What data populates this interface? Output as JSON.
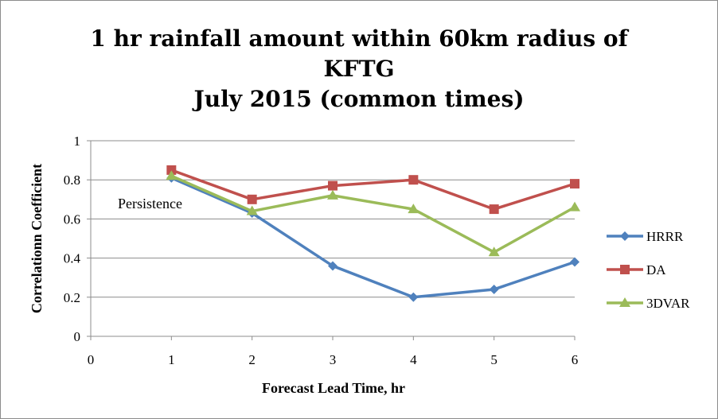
{
  "chart_data": {
    "type": "line",
    "title_lines": [
      "1 hr rainfall amount within 60km radius of",
      "KFTG",
      "July 2015 (common times)"
    ],
    "xlabel": "Forecast Lead Time, hr",
    "ylabel": "Correlationn Coefficient",
    "xlim": [
      0,
      6
    ],
    "ylim": [
      0,
      1
    ],
    "x_ticks": [
      "0",
      "1",
      "2",
      "3",
      "4",
      "5",
      "6"
    ],
    "y_ticks": [
      "0",
      "0.2",
      "0.4",
      "0.6",
      "0.8",
      "1"
    ],
    "x": [
      1,
      2,
      3,
      4,
      5,
      6
    ],
    "grid": "horizontal",
    "legend_position": "right",
    "annotation": "Persistence",
    "series": [
      {
        "name": "HRRR",
        "color": "#4f81bd",
        "marker": "diamond",
        "values": [
          0.81,
          0.63,
          0.36,
          0.2,
          0.24,
          0.38
        ]
      },
      {
        "name": "DA",
        "color": "#c0504d",
        "marker": "square",
        "values": [
          0.85,
          0.7,
          0.77,
          0.8,
          0.65,
          0.78
        ]
      },
      {
        "name": "3DVAR",
        "color": "#9bbb59",
        "marker": "triangle",
        "values": [
          0.82,
          0.64,
          0.72,
          0.65,
          0.43,
          0.66
        ]
      }
    ]
  }
}
